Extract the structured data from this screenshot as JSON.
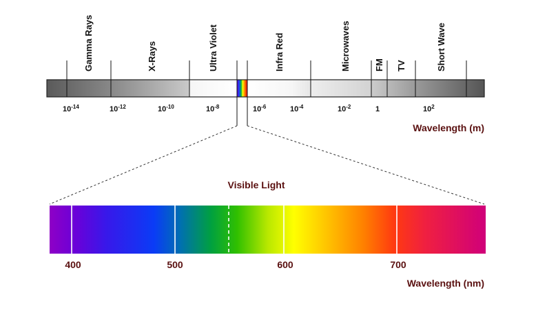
{
  "spectrum": {
    "bands": [
      {
        "name": "Gamma Rays"
      },
      {
        "name": "X-Rays"
      },
      {
        "name": "Ultra Violet"
      },
      {
        "name": "Infra Red"
      },
      {
        "name": "Microwaves"
      },
      {
        "name": "FM"
      },
      {
        "name": "TV"
      },
      {
        "name": "Short Wave"
      }
    ],
    "ticks": [
      {
        "base": "10",
        "exp": "-14"
      },
      {
        "base": "10",
        "exp": "-12"
      },
      {
        "base": "10",
        "exp": "-10"
      },
      {
        "base": "10",
        "exp": "-8"
      },
      {
        "base": "10",
        "exp": "-6"
      },
      {
        "base": "10",
        "exp": "-4"
      },
      {
        "base": "10",
        "exp": "-2"
      },
      {
        "base": "1",
        "exp": ""
      },
      {
        "base": "10",
        "exp": "2"
      }
    ],
    "axis_label": "Wavelength (m)"
  },
  "visible": {
    "title": "Visible Light",
    "ticks": [
      "400",
      "500",
      "600",
      "700"
    ],
    "axis_label": "Wavelength (nm)"
  },
  "colors": {
    "label_brown": "#5a1010",
    "bar_dark": "#555555",
    "bar_light": "#f4f4f4"
  }
}
